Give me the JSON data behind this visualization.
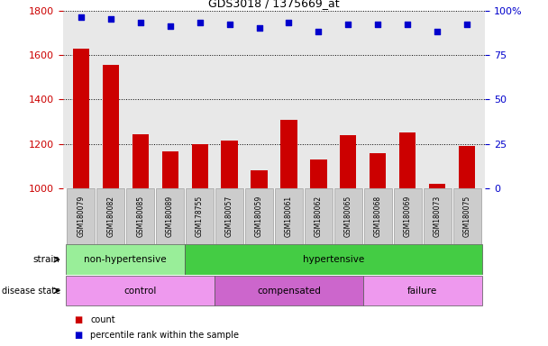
{
  "title": "GDS3018 / 1375669_at",
  "samples": [
    "GSM180079",
    "GSM180082",
    "GSM180085",
    "GSM180089",
    "GSM178755",
    "GSM180057",
    "GSM180059",
    "GSM180061",
    "GSM180062",
    "GSM180065",
    "GSM180068",
    "GSM180069",
    "GSM180073",
    "GSM180075"
  ],
  "bar_values": [
    1627,
    1555,
    1242,
    1168,
    1200,
    1215,
    1082,
    1310,
    1130,
    1240,
    1160,
    1250,
    1020,
    1190
  ],
  "percentile_values": [
    96,
    95,
    93,
    91,
    93,
    92,
    90,
    93,
    88,
    92,
    92,
    92,
    88,
    92
  ],
  "bar_color": "#cc0000",
  "percentile_color": "#0000cc",
  "ylim_left": [
    1000,
    1800
  ],
  "ylim_right": [
    0,
    100
  ],
  "yticks_left": [
    1000,
    1200,
    1400,
    1600,
    1800
  ],
  "yticks_right": [
    0,
    25,
    50,
    75,
    100
  ],
  "strain_groups": [
    {
      "label": "non-hypertensive",
      "start": 0,
      "end": 4,
      "color": "#99ee99"
    },
    {
      "label": "hypertensive",
      "start": 4,
      "end": 14,
      "color": "#44cc44"
    }
  ],
  "disease_groups": [
    {
      "label": "control",
      "start": 0,
      "end": 5,
      "color": "#ee99ee"
    },
    {
      "label": "compensated",
      "start": 5,
      "end": 10,
      "color": "#cc66cc"
    },
    {
      "label": "failure",
      "start": 10,
      "end": 14,
      "color": "#ee99ee"
    }
  ],
  "legend_items": [
    {
      "label": "count",
      "color": "#cc0000"
    },
    {
      "label": "percentile rank within the sample",
      "color": "#0000cc"
    }
  ],
  "left_axis_color": "#cc0000",
  "right_axis_color": "#0000cc",
  "plot_bg_color": "#e8e8e8"
}
